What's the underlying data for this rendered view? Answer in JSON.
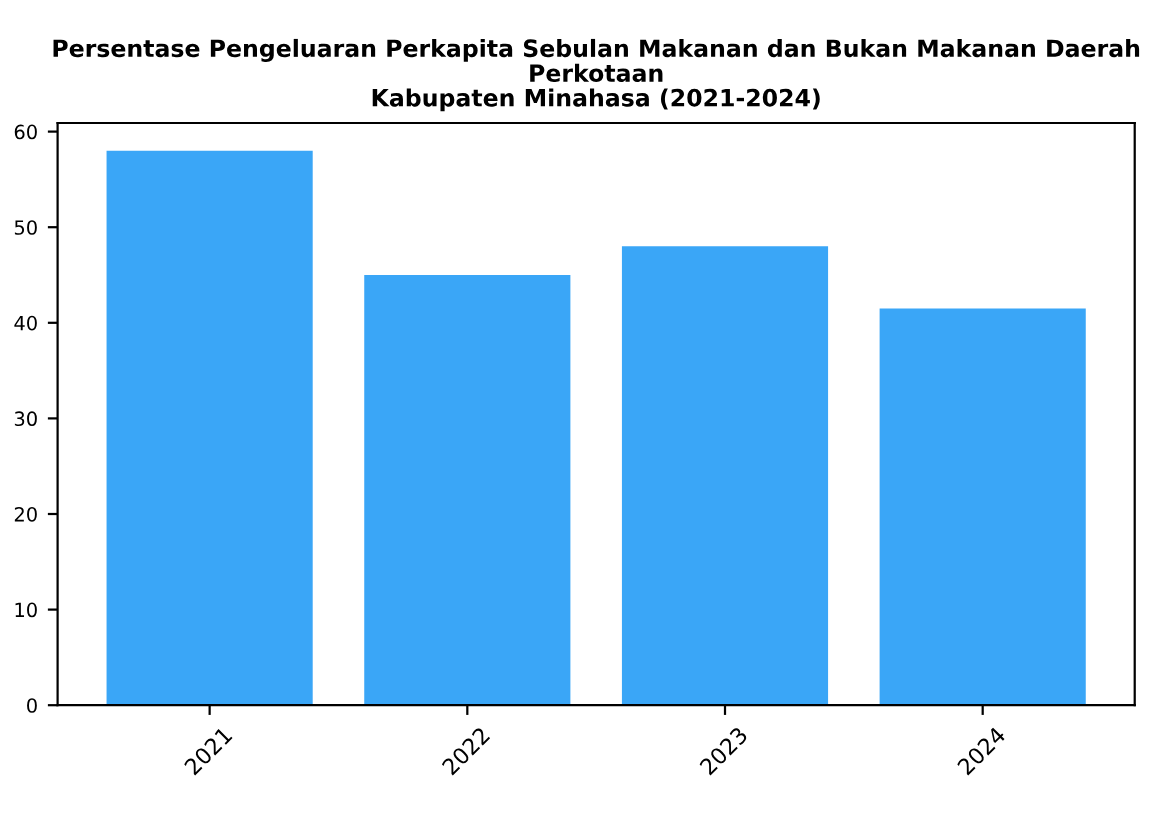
{
  "chart_data": {
    "type": "bar",
    "title": "Persentase Pengeluaran Perkapita Sebulan Makanan dan Bukan Makanan Daerah\nPerkotaan\nKabupaten Minahasa (2021-2024)",
    "categories": [
      "2021",
      "2022",
      "2023",
      "2024"
    ],
    "values": [
      58,
      45,
      48,
      41.5
    ],
    "color": "#3aa6f7",
    "ylim": [
      0,
      60.9
    ],
    "yticks": [
      0,
      10,
      20,
      30,
      40,
      50,
      60
    ],
    "grid": false
  }
}
